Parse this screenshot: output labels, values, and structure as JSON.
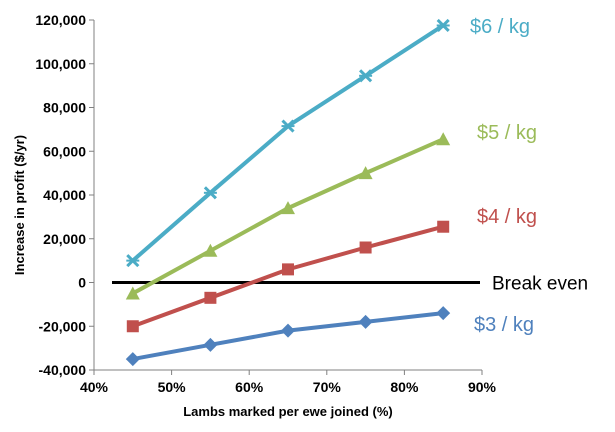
{
  "chart_data": {
    "type": "line",
    "title": "",
    "xlabel": "Lambs marked per ewe joined (%)",
    "ylabel": "Increase in profit  ($/yr)",
    "x": [
      45,
      55,
      65,
      75,
      85
    ],
    "xlim": [
      40,
      90
    ],
    "ylim": [
      -40000,
      120000
    ],
    "x_ticks": [
      "40%",
      "50%",
      "60%",
      "70%",
      "80%",
      "90%"
    ],
    "y_ticks": [
      "-40,000",
      "-20,000",
      "0",
      "20,000",
      "40,000",
      "60,000",
      "80,000",
      "100,000",
      "120,000"
    ],
    "grid": false,
    "legend": "none",
    "series": [
      {
        "name": "$6 / kg",
        "color": "#4bacc6",
        "marker": "star",
        "values": [
          10000,
          41000,
          71500,
          94500,
          117500
        ]
      },
      {
        "name": "$5 / kg",
        "color": "#9bbb59",
        "marker": "triangle",
        "values": [
          -5000,
          14500,
          34000,
          50000,
          65500
        ]
      },
      {
        "name": "$4 / kg",
        "color": "#c0504d",
        "marker": "square",
        "values": [
          -20000,
          -7000,
          6000,
          16000,
          25500
        ]
      },
      {
        "name": "$3 / kg",
        "color": "#4f81bd",
        "marker": "diamond",
        "values": [
          -35000,
          -28500,
          -22000,
          -18000,
          -14000
        ]
      }
    ],
    "reference_line": {
      "value": 0,
      "label": "Break even",
      "color": "#000000"
    }
  }
}
